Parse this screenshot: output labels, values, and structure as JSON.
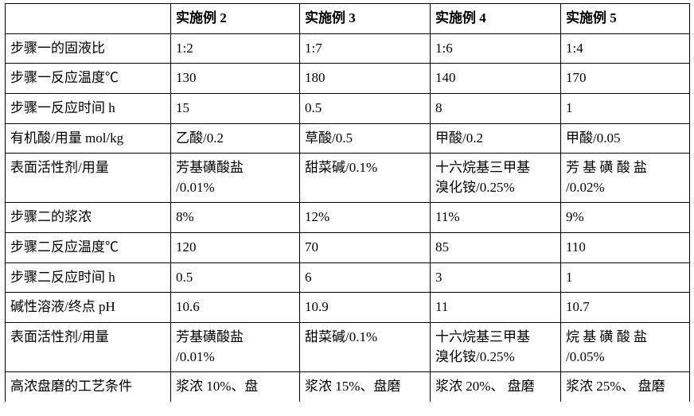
{
  "table": {
    "columns": [
      "",
      "实施例 2",
      "实施例 3",
      "实施例 4",
      "实施例 5"
    ],
    "rows": [
      {
        "label": "步骤一的固液比",
        "c2": "1:2",
        "c3": "1:7",
        "c4": "1:6",
        "c5": "1:4"
      },
      {
        "label": "步骤一反应温度℃",
        "c2": "130",
        "c3": "180",
        "c4": "140",
        "c5": "170"
      },
      {
        "label": "步骤一反应时间 h",
        "c2": "15",
        "c3": "0.5",
        "c4": "8",
        "c5": "1"
      },
      {
        "label": "有机酸/用量 mol/kg",
        "c2": "乙酸/0.2",
        "c3": "草酸/0.5",
        "c4": "甲酸/0.2",
        "c5": "甲酸/0.05"
      },
      {
        "label": "表面活性剂/用量",
        "c2_a": "芳基磺酸盐",
        "c2_b": "/0.01%",
        "c3": "甜菜碱/0.1%",
        "c4_a": "十六烷基三甲基",
        "c4_b": "溴化铵/0.25%",
        "c5_a": "芳 基 磺 酸 盐",
        "c5_b": "/0.02%"
      },
      {
        "label": "步骤二的浆浓",
        "c2": "8%",
        "c3": "12%",
        "c4": "11%",
        "c5": "9%"
      },
      {
        "label": "步骤二反应温度℃",
        "c2": "120",
        "c3": "70",
        "c4": "85",
        "c5": "110"
      },
      {
        "label": "步骤二反应时间 h",
        "c2": "0.5",
        "c3": "6",
        "c4": "3",
        "c5": "1"
      },
      {
        "label": "碱性溶液/终点 pH",
        "c2": "10.6",
        "c3": "10.9",
        "c4": "11",
        "c5": "10.7"
      },
      {
        "label": "表面活性剂/用量",
        "c2_a": "芳基磺酸盐",
        "c2_b": "/0.01%",
        "c3": "甜菜碱/0.1%",
        "c4_a": "十六烷基三甲基",
        "c4_b": "溴化铵/0.25%",
        "c5_a": "烷 基 磺 酸 盐",
        "c5_b": "/0.05%"
      },
      {
        "label": "高浓盘磨的工艺条件",
        "c2": "浆浓 10%、盘",
        "c3": "浆浓 15%、盘磨",
        "c4": "浆浓  20%、 盘磨",
        "c5": "浆浓 25%、 盘磨"
      }
    ]
  }
}
